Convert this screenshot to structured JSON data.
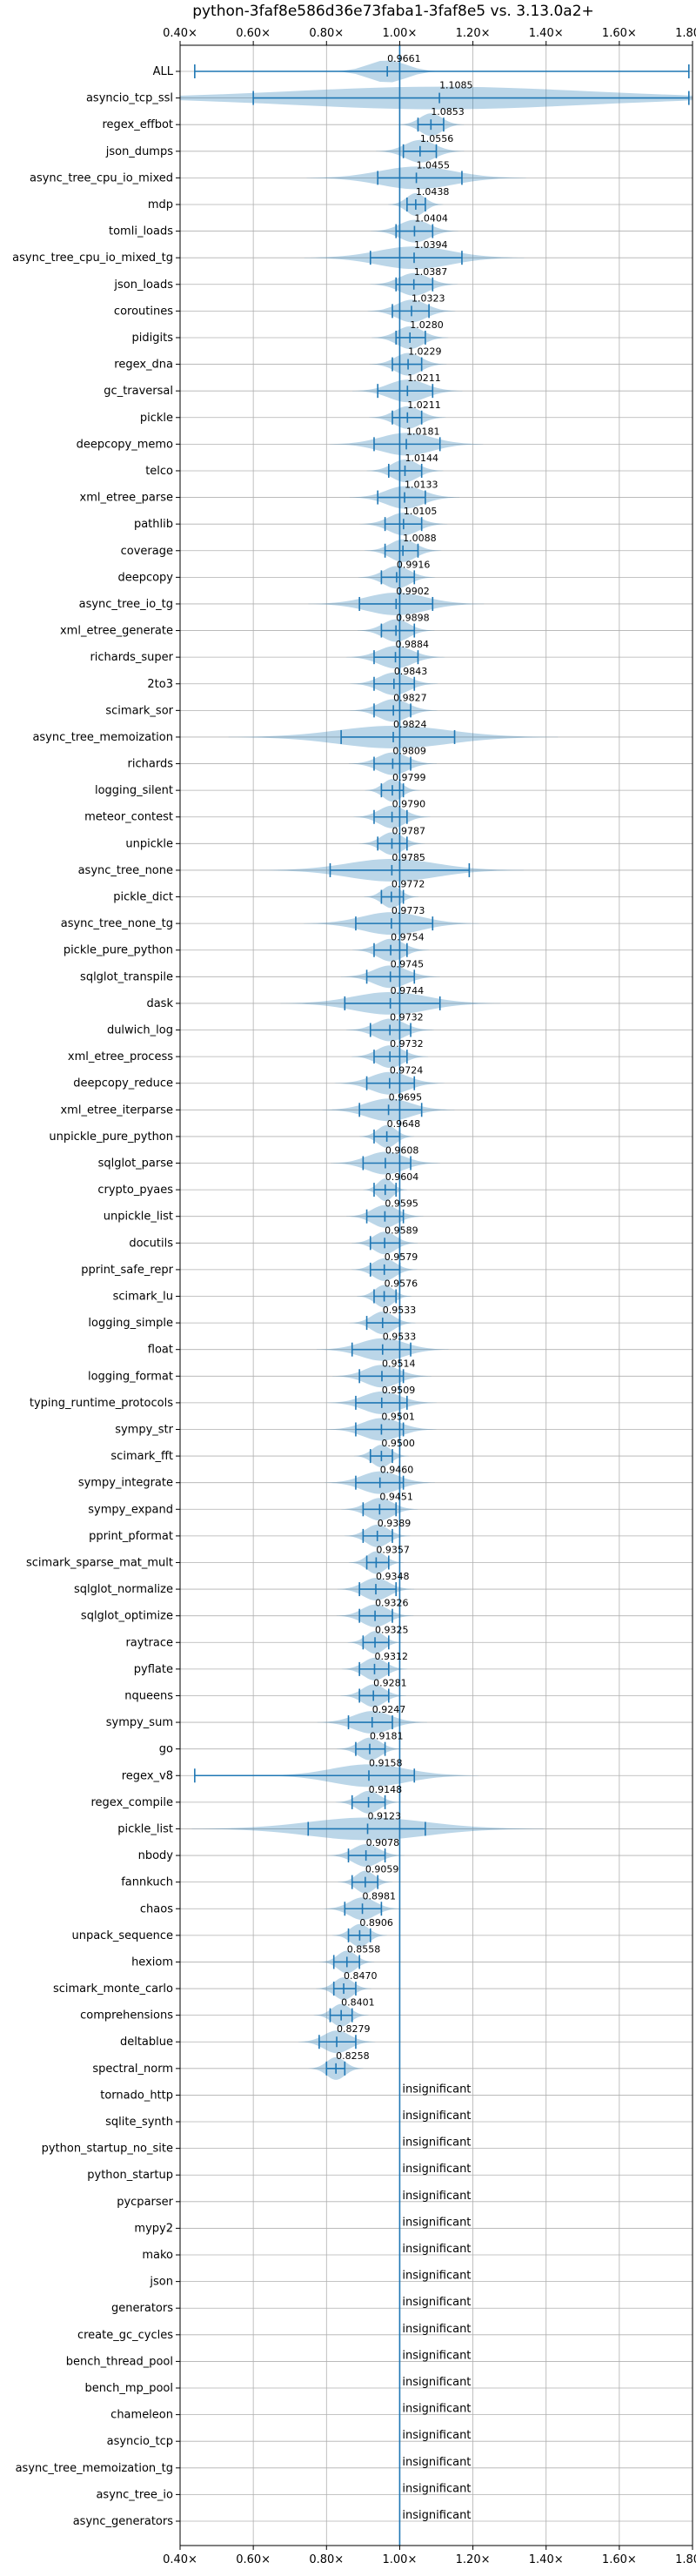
{
  "chart_data": {
    "type": "violin",
    "title": "python-3faf8e586d36e73faba1-3faf8e5 vs. 3.13.0a2+",
    "xlim": [
      0.4,
      1.8
    ],
    "xticks": [
      0.4,
      0.6,
      0.8,
      1.0,
      1.2,
      1.4,
      1.6,
      1.8
    ],
    "xtick_labels": [
      "0.40×",
      "0.60×",
      "0.80×",
      "1.00×",
      "1.20×",
      "1.40×",
      "1.60×",
      "1.80×"
    ],
    "baseline": 1.0,
    "grid": true,
    "insignificant_label": "insignificant",
    "benchmarks": [
      {
        "name": "ALL",
        "value": 0.9661,
        "label": "0.9661",
        "low": 0.44,
        "high": 1.79,
        "spread": 0.05
      },
      {
        "name": "asyncio_tcp_ssl",
        "value": 1.1085,
        "label": "1.1085",
        "low": 0.6,
        "high": 1.79,
        "spread": 0.4
      },
      {
        "name": "regex_effbot",
        "value": 1.0853,
        "label": "1.0853",
        "low": 1.05,
        "high": 1.12,
        "spread": 0.03
      },
      {
        "name": "json_dumps",
        "value": 1.0556,
        "label": "1.0556",
        "low": 1.01,
        "high": 1.1,
        "spread": 0.04
      },
      {
        "name": "async_tree_cpu_io_mixed",
        "value": 1.0455,
        "label": "1.0455",
        "low": 0.94,
        "high": 1.17,
        "spread": 0.1
      },
      {
        "name": "mdp",
        "value": 1.0438,
        "label": "1.0438",
        "low": 1.02,
        "high": 1.07,
        "spread": 0.025
      },
      {
        "name": "tomli_loads",
        "value": 1.0404,
        "label": "1.0404",
        "low": 0.99,
        "high": 1.09,
        "spread": 0.04
      },
      {
        "name": "async_tree_cpu_io_mixed_tg",
        "value": 1.0394,
        "label": "1.0394",
        "low": 0.92,
        "high": 1.17,
        "spread": 0.1
      },
      {
        "name": "json_loads",
        "value": 1.0387,
        "label": "1.0387",
        "low": 0.99,
        "high": 1.09,
        "spread": 0.04
      },
      {
        "name": "coroutines",
        "value": 1.0323,
        "label": "1.0323",
        "low": 0.98,
        "high": 1.08,
        "spread": 0.04
      },
      {
        "name": "pidigits",
        "value": 1.028,
        "label": "1.0280",
        "low": 0.99,
        "high": 1.07,
        "spread": 0.035
      },
      {
        "name": "regex_dna",
        "value": 1.0229,
        "label": "1.0229",
        "low": 0.98,
        "high": 1.06,
        "spread": 0.035
      },
      {
        "name": "gc_traversal",
        "value": 1.0211,
        "label": "1.0211",
        "low": 0.94,
        "high": 1.09,
        "spread": 0.05
      },
      {
        "name": "pickle",
        "value": 1.0211,
        "label": "1.0211",
        "low": 0.98,
        "high": 1.06,
        "spread": 0.035
      },
      {
        "name": "deepcopy_memo",
        "value": 1.0181,
        "label": "1.0181",
        "low": 0.93,
        "high": 1.11,
        "spread": 0.07
      },
      {
        "name": "telco",
        "value": 1.0144,
        "label": "1.0144",
        "low": 0.97,
        "high": 1.06,
        "spread": 0.035
      },
      {
        "name": "xml_etree_parse",
        "value": 1.0133,
        "label": "1.0133",
        "low": 0.94,
        "high": 1.07,
        "spread": 0.05
      },
      {
        "name": "pathlib",
        "value": 1.0105,
        "label": "1.0105",
        "low": 0.96,
        "high": 1.06,
        "spread": 0.04
      },
      {
        "name": "coverage",
        "value": 1.0088,
        "label": "1.0088",
        "low": 0.96,
        "high": 1.05,
        "spread": 0.035
      },
      {
        "name": "deepcopy",
        "value": 0.9916,
        "label": "0.9916",
        "low": 0.95,
        "high": 1.04,
        "spread": 0.035
      },
      {
        "name": "async_tree_io_tg",
        "value": 0.9902,
        "label": "0.9902",
        "low": 0.89,
        "high": 1.09,
        "spread": 0.08
      },
      {
        "name": "xml_etree_generate",
        "value": 0.9898,
        "label": "0.9898",
        "low": 0.95,
        "high": 1.04,
        "spread": 0.035
      },
      {
        "name": "richards_super",
        "value": 0.9884,
        "label": "0.9884",
        "low": 0.93,
        "high": 1.05,
        "spread": 0.045
      },
      {
        "name": "2to3",
        "value": 0.9843,
        "label": "0.9843",
        "low": 0.93,
        "high": 1.04,
        "spread": 0.04
      },
      {
        "name": "scimark_sor",
        "value": 0.9827,
        "label": "0.9827",
        "low": 0.93,
        "high": 1.03,
        "spread": 0.04
      },
      {
        "name": "async_tree_memoization",
        "value": 0.9824,
        "label": "0.9824",
        "low": 0.84,
        "high": 1.15,
        "spread": 0.15
      },
      {
        "name": "richards",
        "value": 0.9809,
        "label": "0.9809",
        "low": 0.93,
        "high": 1.03,
        "spread": 0.04
      },
      {
        "name": "logging_silent",
        "value": 0.9799,
        "label": "0.9799",
        "low": 0.95,
        "high": 1.01,
        "spread": 0.025
      },
      {
        "name": "meteor_contest",
        "value": 0.979,
        "label": "0.9790",
        "low": 0.93,
        "high": 1.02,
        "spread": 0.035
      },
      {
        "name": "unpickle",
        "value": 0.9787,
        "label": "0.9787",
        "low": 0.94,
        "high": 1.02,
        "spread": 0.03
      },
      {
        "name": "async_tree_none",
        "value": 0.9785,
        "label": "0.9785",
        "low": 0.81,
        "high": 1.19,
        "spread": 0.12
      },
      {
        "name": "pickle_dict",
        "value": 0.9772,
        "label": "0.9772",
        "low": 0.95,
        "high": 1.01,
        "spread": 0.025
      },
      {
        "name": "async_tree_none_tg",
        "value": 0.9773,
        "label": "0.9773",
        "low": 0.88,
        "high": 1.09,
        "spread": 0.08
      },
      {
        "name": "pickle_pure_python",
        "value": 0.9754,
        "label": "0.9754",
        "low": 0.93,
        "high": 1.02,
        "spread": 0.035
      },
      {
        "name": "sqlglot_transpile",
        "value": 0.9745,
        "label": "0.9745",
        "low": 0.91,
        "high": 1.04,
        "spread": 0.045
      },
      {
        "name": "dask",
        "value": 0.9744,
        "label": "0.9744",
        "low": 0.85,
        "high": 1.11,
        "spread": 0.1
      },
      {
        "name": "dulwich_log",
        "value": 0.9732,
        "label": "0.9732",
        "low": 0.92,
        "high": 1.03,
        "spread": 0.04
      },
      {
        "name": "xml_etree_process",
        "value": 0.9732,
        "label": "0.9732",
        "low": 0.93,
        "high": 1.02,
        "spread": 0.035
      },
      {
        "name": "deepcopy_reduce",
        "value": 0.9724,
        "label": "0.9724",
        "low": 0.91,
        "high": 1.04,
        "spread": 0.05
      },
      {
        "name": "xml_etree_iterparse",
        "value": 0.9695,
        "label": "0.9695",
        "low": 0.89,
        "high": 1.06,
        "spread": 0.06
      },
      {
        "name": "unpickle_pure_python",
        "value": 0.9648,
        "label": "0.9648",
        "low": 0.93,
        "high": 1.0,
        "spread": 0.025
      },
      {
        "name": "sqlglot_parse",
        "value": 0.9608,
        "label": "0.9608",
        "low": 0.9,
        "high": 1.03,
        "spread": 0.05
      },
      {
        "name": "crypto_pyaes",
        "value": 0.9604,
        "label": "0.9604",
        "low": 0.93,
        "high": 0.99,
        "spread": 0.02
      },
      {
        "name": "unpickle_list",
        "value": 0.9595,
        "label": "0.9595",
        "low": 0.91,
        "high": 1.01,
        "spread": 0.035
      },
      {
        "name": "docutils",
        "value": 0.9589,
        "label": "0.9589",
        "low": 0.92,
        "high": 1.0,
        "spread": 0.03
      },
      {
        "name": "pprint_safe_repr",
        "value": 0.9579,
        "label": "0.9579",
        "low": 0.92,
        "high": 1.0,
        "spread": 0.03
      },
      {
        "name": "scimark_lu",
        "value": 0.9576,
        "label": "0.9576",
        "low": 0.93,
        "high": 0.99,
        "spread": 0.025
      },
      {
        "name": "logging_simple",
        "value": 0.9533,
        "label": "0.9533",
        "low": 0.91,
        "high": 1.0,
        "spread": 0.03
      },
      {
        "name": "float",
        "value": 0.9533,
        "label": "0.9533",
        "low": 0.87,
        "high": 1.03,
        "spread": 0.06
      },
      {
        "name": "logging_format",
        "value": 0.9514,
        "label": "0.9514",
        "low": 0.89,
        "high": 1.01,
        "spread": 0.045
      },
      {
        "name": "typing_runtime_protocols",
        "value": 0.9509,
        "label": "0.9509",
        "low": 0.88,
        "high": 1.02,
        "spread": 0.05
      },
      {
        "name": "sympy_str",
        "value": 0.9501,
        "label": "0.9501",
        "low": 0.88,
        "high": 1.01,
        "spread": 0.05
      },
      {
        "name": "scimark_fft",
        "value": 0.95,
        "label": "0.9500",
        "low": 0.92,
        "high": 0.98,
        "spread": 0.025
      },
      {
        "name": "sympy_integrate",
        "value": 0.946,
        "label": "0.9460",
        "low": 0.88,
        "high": 1.01,
        "spread": 0.05
      },
      {
        "name": "sympy_expand",
        "value": 0.9451,
        "label": "0.9451",
        "low": 0.9,
        "high": 0.99,
        "spread": 0.035
      },
      {
        "name": "pprint_pformat",
        "value": 0.9389,
        "label": "0.9389",
        "low": 0.9,
        "high": 0.98,
        "spread": 0.03
      },
      {
        "name": "scimark_sparse_mat_mult",
        "value": 0.9357,
        "label": "0.9357",
        "low": 0.91,
        "high": 0.97,
        "spread": 0.025
      },
      {
        "name": "sqlglot_normalize",
        "value": 0.9348,
        "label": "0.9348",
        "low": 0.89,
        "high": 0.99,
        "spread": 0.035
      },
      {
        "name": "sqlglot_optimize",
        "value": 0.9326,
        "label": "0.9326",
        "low": 0.89,
        "high": 0.98,
        "spread": 0.035
      },
      {
        "name": "raytrace",
        "value": 0.9325,
        "label": "0.9325",
        "low": 0.9,
        "high": 0.97,
        "spread": 0.025
      },
      {
        "name": "pyflate",
        "value": 0.9312,
        "label": "0.9312",
        "low": 0.89,
        "high": 0.97,
        "spread": 0.03
      },
      {
        "name": "nqueens",
        "value": 0.9281,
        "label": "0.9281",
        "low": 0.89,
        "high": 0.97,
        "spread": 0.03
      },
      {
        "name": "sympy_sum",
        "value": 0.9247,
        "label": "0.9247",
        "low": 0.86,
        "high": 0.98,
        "spread": 0.05
      },
      {
        "name": "go",
        "value": 0.9181,
        "label": "0.9181",
        "low": 0.88,
        "high": 0.96,
        "spread": 0.03
      },
      {
        "name": "regex_v8",
        "value": 0.9158,
        "label": "0.9158",
        "low": 0.44,
        "high": 1.04,
        "spread": 0.1
      },
      {
        "name": "regex_compile",
        "value": 0.9148,
        "label": "0.9148",
        "low": 0.87,
        "high": 0.96,
        "spread": 0.03
      },
      {
        "name": "pickle_list",
        "value": 0.9123,
        "label": "0.9123",
        "low": 0.75,
        "high": 1.07,
        "spread": 0.16
      },
      {
        "name": "nbody",
        "value": 0.9078,
        "label": "0.9078",
        "low": 0.86,
        "high": 0.96,
        "spread": 0.035
      },
      {
        "name": "fannkuch",
        "value": 0.9059,
        "label": "0.9059",
        "low": 0.87,
        "high": 0.94,
        "spread": 0.025
      },
      {
        "name": "chaos",
        "value": 0.8981,
        "label": "0.8981",
        "low": 0.85,
        "high": 0.95,
        "spread": 0.035
      },
      {
        "name": "unpack_sequence",
        "value": 0.8906,
        "label": "0.8906",
        "low": 0.86,
        "high": 0.92,
        "spread": 0.025
      },
      {
        "name": "hexiom",
        "value": 0.8558,
        "label": "0.8558",
        "low": 0.82,
        "high": 0.89,
        "spread": 0.025
      },
      {
        "name": "scimark_monte_carlo",
        "value": 0.847,
        "label": "0.8470",
        "low": 0.82,
        "high": 0.88,
        "spread": 0.025
      },
      {
        "name": "comprehensions",
        "value": 0.8401,
        "label": "0.8401",
        "low": 0.81,
        "high": 0.87,
        "spread": 0.025
      },
      {
        "name": "deltablue",
        "value": 0.8279,
        "label": "0.8279",
        "low": 0.78,
        "high": 0.88,
        "spread": 0.035
      },
      {
        "name": "spectral_norm",
        "value": 0.8258,
        "label": "0.8258",
        "low": 0.8,
        "high": 0.85,
        "spread": 0.025
      },
      {
        "name": "tornado_http",
        "value": null,
        "label": null
      },
      {
        "name": "sqlite_synth",
        "value": null,
        "label": null
      },
      {
        "name": "python_startup_no_site",
        "value": null,
        "label": null
      },
      {
        "name": "python_startup",
        "value": null,
        "label": null
      },
      {
        "name": "pycparser",
        "value": null,
        "label": null
      },
      {
        "name": "mypy2",
        "value": null,
        "label": null
      },
      {
        "name": "mako",
        "value": null,
        "label": null
      },
      {
        "name": "json",
        "value": null,
        "label": null
      },
      {
        "name": "generators",
        "value": null,
        "label": null
      },
      {
        "name": "create_gc_cycles",
        "value": null,
        "label": null
      },
      {
        "name": "bench_thread_pool",
        "value": null,
        "label": null
      },
      {
        "name": "bench_mp_pool",
        "value": null,
        "label": null
      },
      {
        "name": "chameleon",
        "value": null,
        "label": null
      },
      {
        "name": "asyncio_tcp",
        "value": null,
        "label": null
      },
      {
        "name": "async_tree_memoization_tg",
        "value": null,
        "label": null
      },
      {
        "name": "async_tree_io",
        "value": null,
        "label": null
      },
      {
        "name": "async_generators",
        "value": null,
        "label": null
      }
    ]
  }
}
